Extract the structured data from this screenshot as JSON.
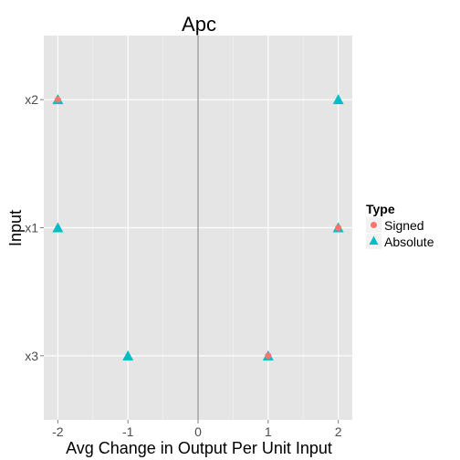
{
  "chart_data": {
    "type": "scatter",
    "title": "Apc",
    "xlabel": "Avg Change in Output Per Unit Input",
    "ylabel": "Input",
    "xlim": [
      -2.2,
      2.2
    ],
    "x_ticks": [
      -2,
      -1,
      0,
      1,
      2
    ],
    "x_tick_labels": [
      "-2",
      "-1",
      "0",
      "1",
      "2"
    ],
    "categories": [
      "x3",
      "x1",
      "x2"
    ],
    "grid": true,
    "zero_line": true,
    "legend": {
      "title": "Type",
      "placement": "right",
      "entries": [
        {
          "label": "Signed",
          "shape": "circle",
          "color": "#F8766D"
        },
        {
          "label": "Absolute",
          "shape": "triangle",
          "color": "#00BFC4"
        }
      ]
    },
    "series": [
      {
        "name": "Signed",
        "color": "#F8766D",
        "points": [
          {
            "category": "x2",
            "x": -2
          },
          {
            "category": "x1",
            "x": 2
          },
          {
            "category": "x3",
            "x": 1
          }
        ]
      },
      {
        "name": "Absolute",
        "color": "#00BFC4",
        "points": [
          {
            "category": "x2",
            "x": -2
          },
          {
            "category": "x2",
            "x": 2
          },
          {
            "category": "x1",
            "x": -2
          },
          {
            "category": "x1",
            "x": 2
          },
          {
            "category": "x3",
            "x": -1
          },
          {
            "category": "x3",
            "x": 1
          }
        ]
      }
    ]
  }
}
